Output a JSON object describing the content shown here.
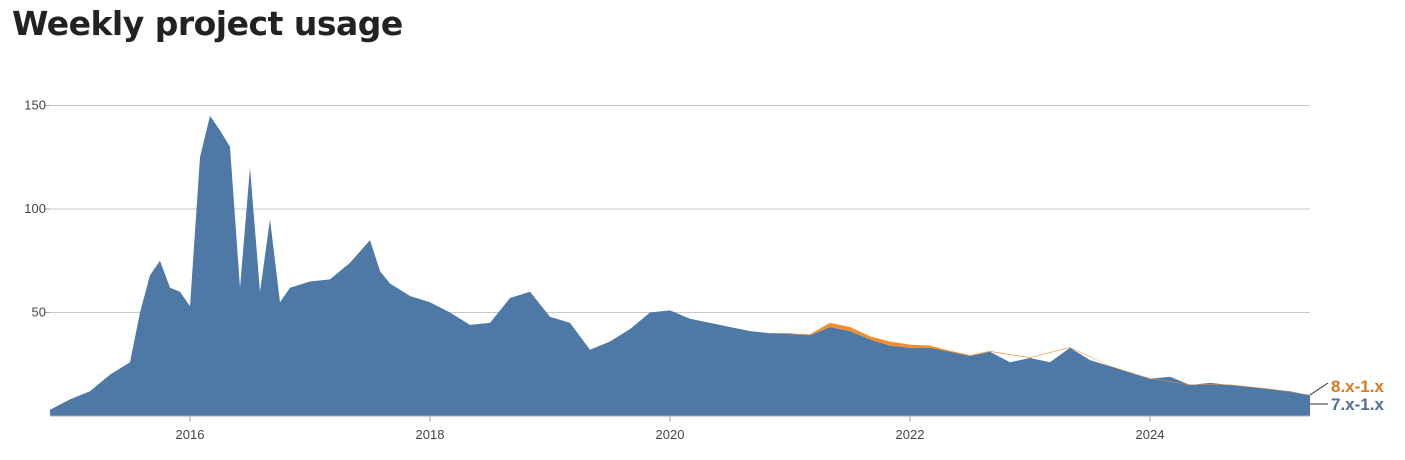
{
  "page": {
    "title": "Weekly project usage"
  },
  "colors": {
    "series_7x": "#4e79a7",
    "series_8x": "#f28e2b",
    "label_7x": "#4e6e93",
    "label_8x": "#d97a1e",
    "grid": "#c8c8cc",
    "axis": "#aaaaaa"
  },
  "chart_data": {
    "type": "area",
    "stacked": true,
    "title": "Weekly project usage",
    "xlabel": "",
    "ylabel": "",
    "x_tick_labels": [
      "2016",
      "2018",
      "2020",
      "2022",
      "2024"
    ],
    "y_tick_labels": [
      "50",
      "100",
      "150"
    ],
    "xlim": [
      "2014-11",
      "2025-05"
    ],
    "ylim": [
      0,
      172
    ],
    "grid": "horizontal",
    "legend": "right-end labels",
    "series": [
      {
        "name": "7.x-1.x",
        "x": [
          "2014-11",
          "2015-01",
          "2015-03",
          "2015-05",
          "2015-07",
          "2015-08",
          "2015-09",
          "2015-10",
          "2015-11",
          "2015-12",
          "2016-01",
          "2016-02",
          "2016-03",
          "2016-04",
          "2016-05",
          "2016-06",
          "2016-07",
          "2016-08",
          "2016-09",
          "2016-10",
          "2016-11",
          "2017-01",
          "2017-03",
          "2017-05",
          "2017-07",
          "2017-08",
          "2017-09",
          "2017-11",
          "2018-01",
          "2018-03",
          "2018-05",
          "2018-07",
          "2018-09",
          "2018-11",
          "2019-01",
          "2019-03",
          "2019-05",
          "2019-07",
          "2019-09",
          "2019-11",
          "2020-01",
          "2020-03",
          "2020-05",
          "2020-07",
          "2020-09",
          "2020-11",
          "2021-01",
          "2021-03",
          "2021-05",
          "2021-07",
          "2021-09",
          "2021-11",
          "2022-01",
          "2022-03",
          "2022-05",
          "2022-07",
          "2022-09",
          "2022-11",
          "2023-01",
          "2023-03",
          "2023-05",
          "2023-07",
          "2023-09",
          "2023-11",
          "2024-01",
          "2024-03",
          "2024-05",
          "2024-07",
          "2024-09",
          "2024-11",
          "2025-01",
          "2025-03",
          "2025-05"
        ],
        "values": [
          3,
          8,
          12,
          20,
          26,
          50,
          68,
          75,
          62,
          60,
          53,
          125,
          145,
          138,
          130,
          62,
          120,
          60,
          95,
          55,
          62,
          65,
          66,
          74,
          85,
          70,
          64,
          58,
          55,
          50,
          44,
          45,
          57,
          60,
          48,
          45,
          32,
          36,
          42,
          50,
          51,
          47,
          45,
          43,
          41,
          40,
          40,
          39,
          43,
          41,
          37,
          34,
          33,
          33,
          31,
          29,
          31,
          26,
          28,
          26,
          33,
          27,
          24,
          21,
          18,
          19,
          15,
          16,
          15,
          14,
          13,
          12,
          10
        ]
      },
      {
        "name": "8.x-1.x",
        "x": [
          "2020-11",
          "2021-03",
          "2021-05",
          "2021-07",
          "2021-09",
          "2021-11",
          "2022-01",
          "2022-03",
          "2022-05",
          "2022-07",
          "2022-09",
          "2023-01",
          "2023-05",
          "2023-09",
          "2024-01",
          "2024-05",
          "2024-09",
          "2025-01",
          "2025-05"
        ],
        "values": [
          0,
          0.5,
          2,
          2,
          1.5,
          2,
          1.5,
          1,
          0.5,
          0.4,
          0.4,
          0.3,
          0.3,
          0.2,
          0.2,
          0.2,
          0.2,
          0.2,
          0.2
        ]
      }
    ]
  }
}
